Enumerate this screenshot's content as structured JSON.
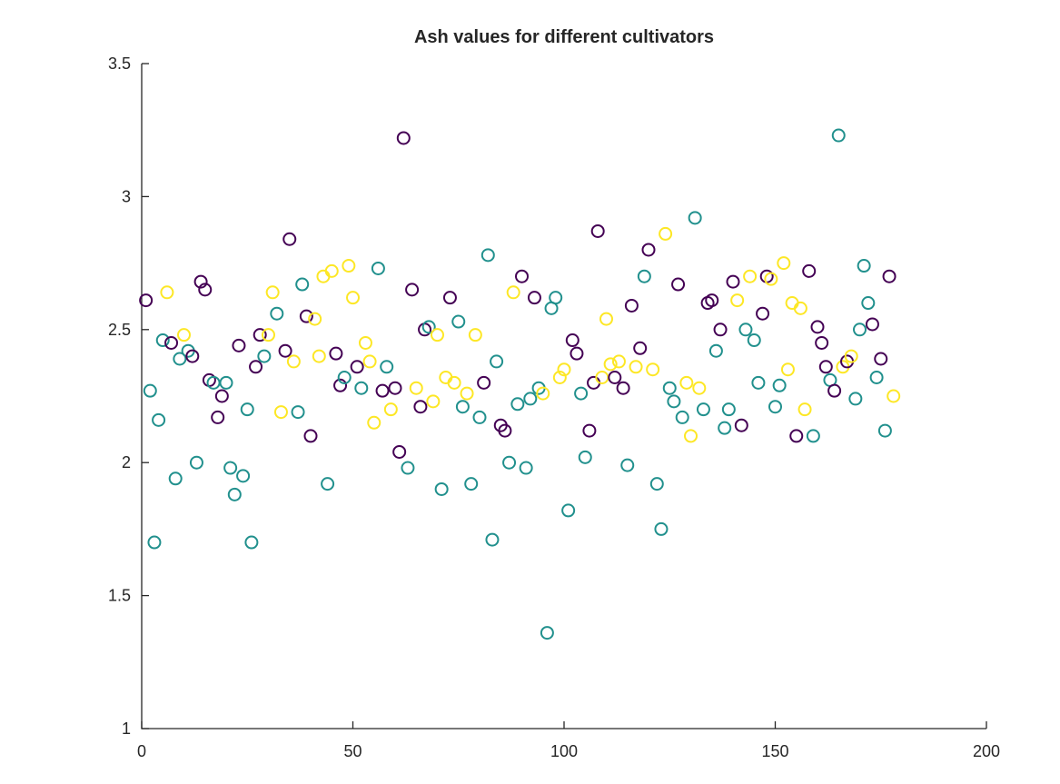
{
  "chart_data": {
    "type": "scatter",
    "title": "Ash values for different cultivators",
    "xlabel": "",
    "ylabel": "",
    "xlim": [
      0,
      200
    ],
    "ylim": [
      1,
      3.5
    ],
    "xticks": [
      0,
      50,
      100,
      150,
      200
    ],
    "yticks": [
      1,
      1.5,
      2,
      2.5,
      3,
      3.5
    ],
    "xtick_labels": [
      "0",
      "50",
      "100",
      "150",
      "200"
    ],
    "ytick_labels": [
      "1",
      "1.5",
      "2",
      "2.5",
      "3",
      "3.5"
    ],
    "grid": false,
    "legend": "none",
    "colors": [
      "#440154",
      "#21908d",
      "#fde725"
    ],
    "points": [
      [
        1,
        2.61,
        0
      ],
      [
        2,
        2.27,
        1
      ],
      [
        3,
        1.7,
        1
      ],
      [
        4,
        2.16,
        1
      ],
      [
        5,
        2.46,
        1
      ],
      [
        6,
        2.64,
        2
      ],
      [
        7,
        2.45,
        0
      ],
      [
        8,
        1.94,
        1
      ],
      [
        9,
        2.39,
        1
      ],
      [
        10,
        2.48,
        2
      ],
      [
        11,
        2.42,
        1
      ],
      [
        12,
        2.4,
        0
      ],
      [
        13,
        2.0,
        1
      ],
      [
        14,
        2.68,
        0
      ],
      [
        15,
        2.65,
        0
      ],
      [
        16,
        2.31,
        0
      ],
      [
        17,
        2.3,
        1
      ],
      [
        18,
        2.17,
        0
      ],
      [
        19,
        2.25,
        0
      ],
      [
        20,
        2.3,
        1
      ],
      [
        21,
        1.98,
        1
      ],
      [
        22,
        1.88,
        1
      ],
      [
        23,
        2.44,
        0
      ],
      [
        24,
        1.95,
        1
      ],
      [
        25,
        2.2,
        1
      ],
      [
        26,
        1.7,
        1
      ],
      [
        27,
        2.36,
        0
      ],
      [
        28,
        2.48,
        0
      ],
      [
        29,
        2.4,
        1
      ],
      [
        30,
        2.48,
        2
      ],
      [
        31,
        2.64,
        2
      ],
      [
        32,
        2.56,
        1
      ],
      [
        33,
        2.19,
        2
      ],
      [
        34,
        2.42,
        0
      ],
      [
        35,
        2.84,
        0
      ],
      [
        36,
        2.38,
        2
      ],
      [
        37,
        2.19,
        1
      ],
      [
        38,
        2.67,
        1
      ],
      [
        39,
        2.55,
        0
      ],
      [
        40,
        2.1,
        0
      ],
      [
        41,
        2.54,
        2
      ],
      [
        42,
        2.4,
        2
      ],
      [
        43,
        2.7,
        2
      ],
      [
        44,
        1.92,
        1
      ],
      [
        45,
        2.72,
        2
      ],
      [
        46,
        2.41,
        0
      ],
      [
        47,
        2.29,
        0
      ],
      [
        48,
        2.32,
        1
      ],
      [
        49,
        2.74,
        2
      ],
      [
        50,
        2.62,
        2
      ],
      [
        51,
        2.36,
        0
      ],
      [
        52,
        2.28,
        1
      ],
      [
        53,
        2.45,
        2
      ],
      [
        54,
        2.38,
        2
      ],
      [
        55,
        2.15,
        2
      ],
      [
        56,
        2.73,
        1
      ],
      [
        57,
        2.27,
        0
      ],
      [
        58,
        2.36,
        1
      ],
      [
        59,
        2.2,
        2
      ],
      [
        60,
        2.28,
        0
      ],
      [
        61,
        2.04,
        0
      ],
      [
        62,
        3.22,
        0
      ],
      [
        63,
        1.98,
        1
      ],
      [
        64,
        2.65,
        0
      ],
      [
        65,
        2.28,
        2
      ],
      [
        66,
        2.21,
        0
      ],
      [
        67,
        2.5,
        0
      ],
      [
        68,
        2.51,
        1
      ],
      [
        69,
        2.23,
        2
      ],
      [
        70,
        2.48,
        2
      ],
      [
        71,
        1.9,
        1
      ],
      [
        72,
        2.32,
        2
      ],
      [
        73,
        2.62,
        0
      ],
      [
        74,
        2.3,
        2
      ],
      [
        75,
        2.53,
        1
      ],
      [
        76,
        2.21,
        1
      ],
      [
        77,
        2.26,
        2
      ],
      [
        78,
        1.92,
        1
      ],
      [
        79,
        2.48,
        2
      ],
      [
        80,
        2.17,
        1
      ],
      [
        81,
        2.3,
        0
      ],
      [
        82,
        2.78,
        1
      ],
      [
        83,
        1.71,
        1
      ],
      [
        84,
        2.38,
        1
      ],
      [
        85,
        2.14,
        0
      ],
      [
        86,
        2.12,
        0
      ],
      [
        87,
        2.0,
        1
      ],
      [
        88,
        2.64,
        2
      ],
      [
        89,
        2.22,
        1
      ],
      [
        90,
        2.7,
        0
      ],
      [
        91,
        1.98,
        1
      ],
      [
        92,
        2.24,
        1
      ],
      [
        93,
        2.62,
        0
      ],
      [
        94,
        2.28,
        1
      ],
      [
        95,
        2.26,
        2
      ],
      [
        96,
        1.36,
        1
      ],
      [
        97,
        2.58,
        1
      ],
      [
        98,
        2.62,
        1
      ],
      [
        99,
        2.32,
        2
      ],
      [
        100,
        2.35,
        2
      ],
      [
        101,
        1.82,
        1
      ],
      [
        102,
        2.46,
        0
      ],
      [
        103,
        2.41,
        0
      ],
      [
        104,
        2.26,
        1
      ],
      [
        105,
        2.02,
        1
      ],
      [
        106,
        2.12,
        0
      ],
      [
        107,
        2.3,
        0
      ],
      [
        108,
        2.87,
        0
      ],
      [
        109,
        2.32,
        2
      ],
      [
        110,
        2.54,
        2
      ],
      [
        111,
        2.37,
        2
      ],
      [
        112,
        2.32,
        0
      ],
      [
        113,
        2.38,
        2
      ],
      [
        114,
        2.28,
        0
      ],
      [
        115,
        1.99,
        1
      ],
      [
        116,
        2.59,
        0
      ],
      [
        117,
        2.36,
        2
      ],
      [
        118,
        2.43,
        0
      ],
      [
        119,
        2.7,
        1
      ],
      [
        120,
        2.8,
        0
      ],
      [
        121,
        2.35,
        2
      ],
      [
        122,
        1.92,
        1
      ],
      [
        123,
        1.75,
        1
      ],
      [
        124,
        2.86,
        2
      ],
      [
        125,
        2.28,
        1
      ],
      [
        126,
        2.23,
        1
      ],
      [
        127,
        2.67,
        0
      ],
      [
        128,
        2.17,
        1
      ],
      [
        129,
        2.3,
        2
      ],
      [
        130,
        2.1,
        2
      ],
      [
        131,
        2.92,
        1
      ],
      [
        132,
        2.28,
        2
      ],
      [
        133,
        2.2,
        1
      ],
      [
        134,
        2.6,
        0
      ],
      [
        135,
        2.61,
        0
      ],
      [
        136,
        2.42,
        1
      ],
      [
        137,
        2.5,
        0
      ],
      [
        138,
        2.13,
        1
      ],
      [
        139,
        2.2,
        1
      ],
      [
        140,
        2.68,
        0
      ],
      [
        141,
        2.61,
        2
      ],
      [
        142,
        2.14,
        0
      ],
      [
        143,
        2.5,
        1
      ],
      [
        144,
        2.7,
        2
      ],
      [
        145,
        2.46,
        1
      ],
      [
        146,
        2.3,
        1
      ],
      [
        147,
        2.56,
        0
      ],
      [
        148,
        2.7,
        0
      ],
      [
        149,
        2.69,
        2
      ],
      [
        150,
        2.21,
        1
      ],
      [
        151,
        2.29,
        1
      ],
      [
        152,
        2.75,
        2
      ],
      [
        153,
        2.35,
        2
      ],
      [
        154,
        2.6,
        2
      ],
      [
        155,
        2.1,
        0
      ],
      [
        156,
        2.58,
        2
      ],
      [
        157,
        2.2,
        2
      ],
      [
        158,
        2.72,
        0
      ],
      [
        159,
        2.1,
        1
      ],
      [
        160,
        2.51,
        0
      ],
      [
        161,
        2.45,
        0
      ],
      [
        162,
        2.36,
        0
      ],
      [
        163,
        2.31,
        1
      ],
      [
        164,
        2.27,
        0
      ],
      [
        165,
        3.23,
        1
      ],
      [
        166,
        2.36,
        2
      ],
      [
        167,
        2.38,
        0
      ],
      [
        168,
        2.4,
        2
      ],
      [
        169,
        2.24,
        1
      ],
      [
        170,
        2.5,
        1
      ],
      [
        171,
        2.74,
        1
      ],
      [
        172,
        2.6,
        1
      ],
      [
        173,
        2.52,
        0
      ],
      [
        174,
        2.32,
        1
      ],
      [
        175,
        2.39,
        0
      ],
      [
        176,
        2.12,
        1
      ],
      [
        177,
        2.7,
        0
      ],
      [
        178,
        2.25,
        2
      ]
    ]
  }
}
